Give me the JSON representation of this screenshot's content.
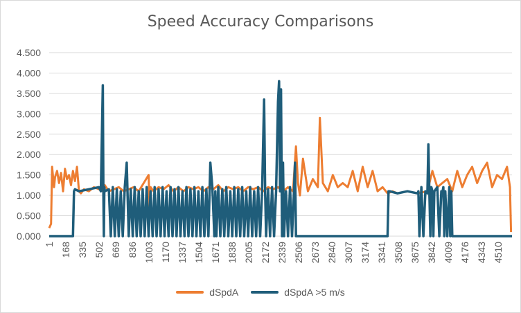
{
  "chart_data": {
    "type": "line",
    "title": "Speed Accuracy Comparisons",
    "ylim": [
      0,
      4.5
    ],
    "ytick_labels": [
      "0.000",
      "0.500",
      "1.000",
      "1.500",
      "2.000",
      "2.500",
      "3.000",
      "3.500",
      "4.000",
      "4.500"
    ],
    "xlim": [
      1,
      4650
    ],
    "xtick_labels": [
      "1",
      "168",
      "335",
      "502",
      "669",
      "836",
      "1003",
      "1170",
      "1337",
      "1504",
      "1671",
      "1838",
      "2005",
      "2172",
      "2339",
      "2506",
      "2673",
      "2840",
      "3007",
      "3174",
      "3341",
      "3508",
      "3675",
      "3842",
      "4009",
      "4176",
      "4343",
      "4510"
    ],
    "grid": true,
    "legend_position": "bottom",
    "series": [
      {
        "name": "dSpdA",
        "color": "#ED7D31",
        "x": [
          1,
          20,
          30,
          50,
          60,
          80,
          100,
          120,
          140,
          160,
          180,
          200,
          220,
          240,
          260,
          280,
          300,
          320,
          350,
          400,
          450,
          500,
          520,
          540,
          560,
          600,
          650,
          700,
          750,
          800,
          850,
          900,
          950,
          1000,
          1010,
          1020,
          1050,
          1100,
          1150,
          1200,
          1250,
          1300,
          1350,
          1400,
          1450,
          1500,
          1550,
          1600,
          1650,
          1700,
          1750,
          1800,
          1850,
          1900,
          1950,
          2000,
          2050,
          2100,
          2150,
          2200,
          2250,
          2300,
          2350,
          2400,
          2450,
          2480,
          2500,
          2520,
          2550,
          2600,
          2650,
          2700,
          2720,
          2750,
          2800,
          2850,
          2900,
          2950,
          3000,
          3050,
          3100,
          3150,
          3200,
          3250,
          3300,
          3350,
          3400,
          3450,
          3500,
          3600,
          3700,
          3800,
          3850,
          3900,
          3950,
          4000,
          4050,
          4100,
          4150,
          4200,
          4250,
          4300,
          4350,
          4400,
          4450,
          4500,
          4550,
          4600,
          4630,
          4640
        ],
        "y": [
          0.2,
          0.3,
          1.7,
          1.2,
          1.45,
          1.6,
          1.3,
          1.55,
          1.1,
          1.65,
          1.4,
          1.5,
          1.25,
          1.6,
          1.35,
          1.7,
          1.1,
          1.05,
          1.15,
          1.1,
          1.2,
          1.15,
          1.2,
          1.1,
          1.25,
          1.1,
          1.15,
          1.2,
          1.1,
          1.15,
          1.2,
          1.1,
          1.3,
          1.5,
          0.7,
          1.2,
          1.1,
          1.2,
          1.15,
          1.25,
          1.1,
          1.2,
          1.1,
          1.2,
          1.15,
          1.2,
          1.1,
          1.2,
          1.15,
          1.25,
          1.1,
          1.2,
          1.15,
          1.2,
          1.1,
          1.2,
          1.15,
          1.2,
          1.1,
          1.2,
          1.15,
          1.2,
          1.1,
          1.2,
          1.1,
          2.2,
          1.3,
          1.0,
          1.9,
          1.1,
          1.4,
          1.2,
          2.9,
          1.3,
          1.1,
          1.5,
          1.2,
          1.3,
          1.2,
          1.6,
          1.1,
          1.7,
          1.2,
          1.6,
          1.1,
          1.2,
          1.05,
          1.1,
          1.05,
          1.1,
          1.05,
          1.1,
          1.6,
          1.2,
          1.3,
          1.4,
          1.1,
          1.6,
          1.2,
          1.5,
          1.7,
          1.3,
          1.6,
          1.8,
          1.2,
          1.5,
          1.4,
          1.7,
          1.2,
          0.1
        ]
      },
      {
        "name": "dSpdA >5 m/s",
        "color": "#1F5D7A",
        "x": [
          1,
          240,
          250,
          260,
          300,
          400,
          500,
          520,
          540,
          545,
          550,
          555,
          560,
          600,
          620,
          640,
          660,
          680,
          700,
          720,
          740,
          760,
          780,
          800,
          820,
          840,
          860,
          880,
          900,
          920,
          940,
          960,
          980,
          1000,
          1020,
          1040,
          1060,
          1080,
          1100,
          1120,
          1140,
          1160,
          1180,
          1200,
          1220,
          1240,
          1260,
          1280,
          1300,
          1320,
          1340,
          1360,
          1380,
          1400,
          1420,
          1440,
          1460,
          1480,
          1500,
          1520,
          1540,
          1560,
          1580,
          1600,
          1620,
          1640,
          1660,
          1670,
          1680,
          1700,
          1720,
          1740,
          1760,
          1780,
          1800,
          1820,
          1840,
          1860,
          1880,
          1900,
          1920,
          1940,
          1960,
          1980,
          2000,
          2020,
          2040,
          2060,
          2080,
          2100,
          2120,
          2140,
          2160,
          2170,
          2180,
          2200,
          2220,
          2240,
          2260,
          2280,
          2300,
          2310,
          2320,
          2330,
          2340,
          2350,
          2360,
          2380,
          2400,
          2420,
          2440,
          2460,
          2470,
          2480,
          2500,
          3000,
          3400,
          3410,
          3420,
          3500,
          3600,
          3700,
          3710,
          3720,
          3740,
          3760,
          3780,
          3800,
          3810,
          3820,
          3830,
          3840,
          3850,
          3860,
          3870,
          3900,
          3920,
          3940,
          3950,
          3960,
          3970,
          3980,
          4000,
          4020,
          4030,
          4040,
          4050,
          4650
        ],
        "y": [
          0.0,
          0.0,
          1.1,
          1.15,
          1.1,
          1.15,
          1.2,
          1.1,
          3.7,
          1.1,
          0.0,
          1.2,
          1.1,
          1.15,
          0.0,
          1.2,
          0.0,
          1.15,
          0.0,
          1.1,
          0.0,
          1.2,
          1.8,
          0.0,
          1.15,
          0.0,
          1.2,
          0.0,
          1.1,
          0.0,
          1.15,
          0.0,
          1.2,
          0.0,
          1.1,
          0.0,
          1.2,
          0.0,
          1.15,
          0.0,
          1.2,
          0.0,
          1.1,
          0.0,
          1.2,
          0.0,
          1.15,
          0.0,
          1.2,
          0.0,
          1.1,
          0.0,
          1.2,
          0.0,
          1.15,
          0.0,
          1.2,
          0.0,
          1.1,
          0.0,
          1.2,
          0.0,
          1.15,
          0.0,
          1.8,
          1.2,
          0.0,
          1.1,
          0.0,
          1.2,
          0.0,
          1.15,
          0.0,
          1.2,
          0.0,
          1.1,
          0.0,
          1.2,
          0.0,
          1.15,
          0.0,
          1.2,
          0.0,
          1.1,
          0.0,
          1.2,
          0.0,
          1.1,
          0.0,
          1.2,
          0.0,
          1.1,
          3.35,
          1.1,
          0.0,
          1.15,
          0.0,
          1.2,
          0.0,
          1.1,
          3.3,
          3.8,
          1.1,
          3.6,
          0.0,
          1.8,
          0.0,
          1.1,
          0.0,
          1.2,
          0.0,
          1.1,
          1.8,
          0.0,
          0.0,
          0.0,
          0.0,
          1.1,
          1.1,
          1.05,
          1.1,
          1.05,
          1.1,
          0.0,
          1.2,
          0.0,
          1.1,
          1.05,
          2.25,
          1.1,
          0.0,
          1.2,
          1.1,
          0.0,
          1.1,
          1.2,
          0.0,
          1.1,
          1.05,
          1.2,
          0.0,
          1.1,
          0.0,
          1.2,
          0.0,
          1.1,
          0.0,
          0.0
        ]
      }
    ]
  }
}
